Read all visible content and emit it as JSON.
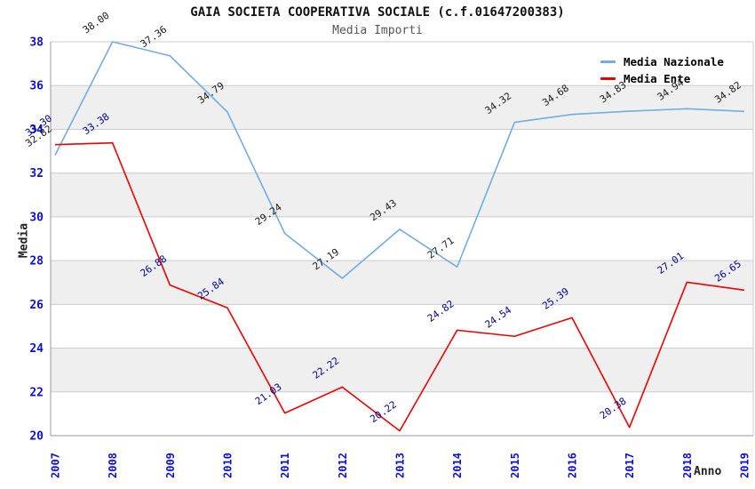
{
  "title": "GAIA SOCIETA COOPERATIVA SOCIALE (c.f.01647200383)",
  "subtitle": "Media Importi",
  "chart_data": {
    "type": "line",
    "x": [
      "2007",
      "2008",
      "2009",
      "2010",
      "2011",
      "2012",
      "2013",
      "2014",
      "2015",
      "2016",
      "2017",
      "2018",
      "2019"
    ],
    "series": [
      {
        "name": "Media Nazionale",
        "color": "#74abe0",
        "label_color": "#1a1a1a",
        "values": [
          32.82,
          38.0,
          37.36,
          34.79,
          29.24,
          27.19,
          29.43,
          27.71,
          34.32,
          34.68,
          34.83,
          34.94,
          34.82
        ]
      },
      {
        "name": "Media Ente",
        "color": "#ee0000",
        "label_color": "#00008b",
        "values": [
          33.3,
          33.38,
          26.88,
          25.84,
          21.03,
          22.22,
          20.22,
          24.82,
          24.54,
          25.39,
          20.38,
          27.01,
          26.65
        ]
      }
    ],
    "xlabel": "Anno",
    "ylabel": "Media",
    "ylim": [
      20,
      38
    ],
    "ytick_step": 2,
    "yticks": [
      "20",
      "22",
      "24",
      "26",
      "28",
      "30",
      "32",
      "34",
      "36",
      "38"
    ],
    "grid": "horizontal",
    "legend_position": "top-right",
    "band_colors": [
      "#ffffff",
      "#efefef"
    ],
    "gridline_color": "#cccccc",
    "axis_border_color": "#999999",
    "axis_text_color": "#0f0fd0",
    "data_labels": true
  }
}
